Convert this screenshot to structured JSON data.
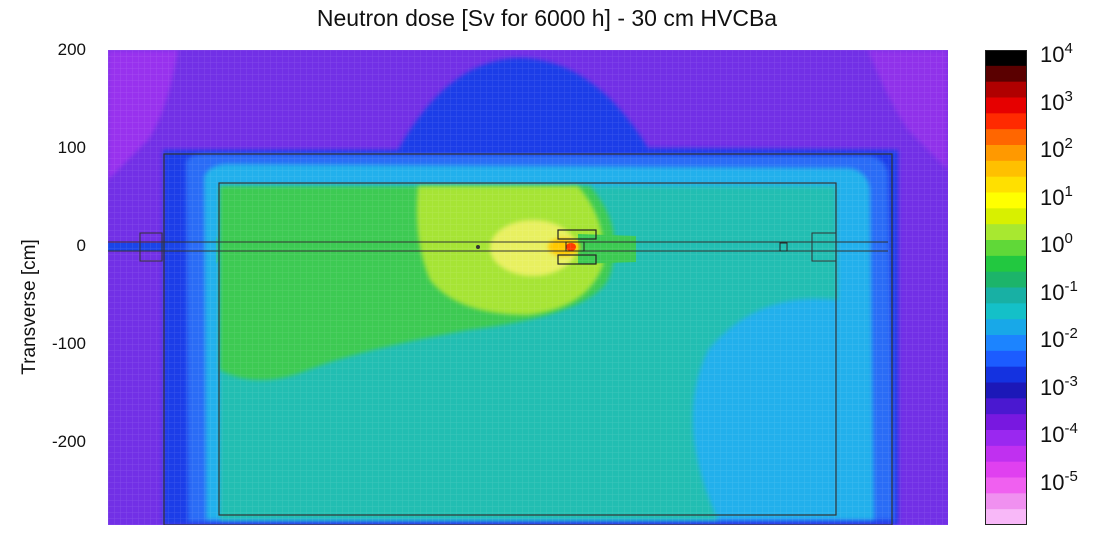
{
  "chart_data": {
    "type": "heatmap",
    "title": "Neutron dose [Sv for 6000 h] - 30 cm HVCBa",
    "xlabel": "",
    "ylabel": "Transverse [cm]",
    "yticks": [
      "200",
      "100",
      "0",
      "-100",
      "-200"
    ],
    "ytick_values": [
      200,
      100,
      0,
      -100,
      -200
    ],
    "ylim": [
      -285,
      200
    ],
    "xlim": [
      -430,
      430
    ],
    "colorbar": {
      "scale": "log",
      "range": [
        1e-06,
        10000.0
      ],
      "labels": [
        {
          "base": "10",
          "exp": "4",
          "value": 10000
        },
        {
          "base": "10",
          "exp": "3",
          "value": 1000
        },
        {
          "base": "10",
          "exp": "2",
          "value": 100
        },
        {
          "base": "10",
          "exp": "1",
          "value": 10
        },
        {
          "base": "10",
          "exp": "0",
          "value": 1
        },
        {
          "base": "10",
          "exp": "-1",
          "value": 0.1
        },
        {
          "base": "10",
          "exp": "-2",
          "value": 0.01
        },
        {
          "base": "10",
          "exp": "-3",
          "value": 0.001
        },
        {
          "base": "10",
          "exp": "-4",
          "value": 0.0001
        },
        {
          "base": "10",
          "exp": "-5",
          "value": 1e-05
        }
      ],
      "colors": [
        "#000000",
        "#5a0000",
        "#b00000",
        "#e60000",
        "#ff2a00",
        "#ff6600",
        "#ff9900",
        "#ffc000",
        "#ffe000",
        "#ffff00",
        "#d8f000",
        "#a8e830",
        "#60d838",
        "#22c840",
        "#1cb46a",
        "#18b0a4",
        "#14c0c8",
        "#18a8e8",
        "#1c84ff",
        "#1c5cff",
        "#1432e0",
        "#1c18b8",
        "#4a18d0",
        "#7818e0",
        "#9a28f0",
        "#c030f0",
        "#e040f0",
        "#f060f0",
        "#f090f0",
        "#f8b8f8"
      ]
    },
    "regions": [
      {
        "level": "10^-4",
        "color": "#7a36ea"
      },
      {
        "level": "10^-3",
        "color": "#2244ee"
      },
      {
        "level": "10^-2",
        "color": "#22b8e0"
      },
      {
        "level": "10^-1",
        "color": "#2ec896"
      },
      {
        "level": "10^-1",
        "color": "#44cc44"
      },
      {
        "level": "10^0",
        "color": "#b8e830"
      },
      {
        "level": "10^1",
        "color": "#ffe000"
      },
      {
        "level": "10^2",
        "color": "#ff3300"
      }
    ]
  }
}
